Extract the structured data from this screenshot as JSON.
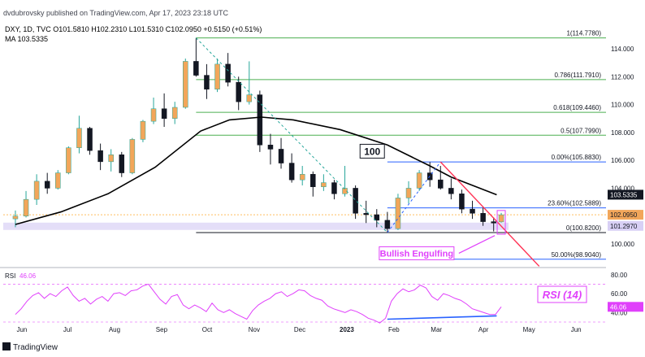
{
  "header": {
    "publisher_line": "dvdubrovsky published on TradingView.com, Apr 17, 2023 23:18 UTC",
    "symbol_line": "DXY, 1D, TVC  O101.5810  H102.2310  L101.5310  C102.0950  +0.5150 (+0.51%)",
    "ma_line": "MA  103.5335"
  },
  "footer": {
    "brand": "TradingView"
  },
  "colors": {
    "up": "#26a69a",
    "down": "#131722",
    "ma": "#000000",
    "fib_green": "#4caf50",
    "fib_blue": "#2962ff",
    "trendline": "#ff3355",
    "rsi": "#e040fb",
    "annot": "#e040fb",
    "rsi_trend": "#2962ff",
    "range_band": "#d8d0f5"
  },
  "chart_data": [
    {
      "type": "candlestick",
      "title": "DXY, 1D, TVC",
      "ohlc_latest": {
        "open": 101.581,
        "high": 102.231,
        "low": 101.531,
        "close": 102.095,
        "change": 0.515,
        "change_pct": "+0.51%"
      },
      "x_ticks": [
        "Jun",
        "Jul",
        "Aug",
        "Sep",
        "Oct",
        "Nov",
        "Dec",
        "2023",
        "Feb",
        "Mar",
        "Apr",
        "May",
        "Jun"
      ],
      "y_ticks": [
        "114.000",
        "112.000",
        "110.000",
        "108.000",
        "106.000",
        "104.000",
        "100.000"
      ],
      "ylim": [
        98.0,
        116.0
      ],
      "series": [
        {
          "name": "MA",
          "value_label": "103.5335",
          "points": [
            [
              "2022-06-01",
              101.4
            ],
            [
              "2022-07-01",
              102.3
            ],
            [
              "2022-08-01",
              103.6
            ],
            [
              "2022-09-01",
              105.5
            ],
            [
              "2022-10-01",
              108.1
            ],
            [
              "2022-10-20",
              108.9
            ],
            [
              "2022-11-10",
              109.1
            ],
            [
              "2022-12-01",
              108.9
            ],
            [
              "2023-01-01",
              108.2
            ],
            [
              "2023-02-01",
              107.1
            ],
            [
              "2023-03-01",
              105.6
            ],
            [
              "2023-03-15",
              104.8
            ],
            [
              "2023-04-14",
              103.53
            ]
          ]
        }
      ],
      "ohlc_sample": [
        [
          "2022-06-01",
          101.8,
          102.4,
          101.2,
          102.0
        ],
        [
          "2022-06-08",
          102.0,
          103.8,
          101.9,
          103.2
        ],
        [
          "2022-06-15",
          103.2,
          105.0,
          102.8,
          104.5
        ],
        [
          "2022-06-22",
          104.5,
          105.1,
          103.6,
          104.0
        ],
        [
          "2022-06-29",
          104.0,
          105.3,
          103.9,
          105.1
        ],
        [
          "2022-07-06",
          105.1,
          107.0,
          105.0,
          106.9
        ],
        [
          "2022-07-13",
          106.9,
          109.2,
          106.5,
          108.3
        ],
        [
          "2022-07-20",
          108.3,
          108.4,
          106.4,
          106.7
        ],
        [
          "2022-07-27",
          106.7,
          107.2,
          105.3,
          105.9
        ],
        [
          "2022-08-03",
          105.9,
          106.8,
          105.2,
          106.4
        ],
        [
          "2022-08-10",
          106.4,
          106.6,
          104.8,
          105.1
        ],
        [
          "2022-08-17",
          105.1,
          107.6,
          105.0,
          107.5
        ],
        [
          "2022-08-24",
          107.5,
          108.9,
          107.3,
          108.8
        ],
        [
          "2022-08-31",
          108.8,
          110.5,
          108.6,
          109.7
        ],
        [
          "2022-09-07",
          109.7,
          110.8,
          108.4,
          109.0
        ],
        [
          "2022-09-14",
          109.0,
          110.2,
          108.6,
          109.8
        ],
        [
          "2022-09-21",
          109.8,
          113.3,
          109.7,
          113.1
        ],
        [
          "2022-09-28",
          113.1,
          114.78,
          112.0,
          112.1
        ],
        [
          "2022-10-05",
          112.1,
          112.9,
          110.4,
          111.1
        ],
        [
          "2022-10-12",
          111.1,
          113.3,
          110.9,
          112.9
        ],
        [
          "2022-10-19",
          112.9,
          113.7,
          111.3,
          111.6
        ],
        [
          "2022-10-26",
          111.6,
          112.0,
          109.6,
          110.2
        ],
        [
          "2022-11-02",
          110.2,
          113.1,
          110.0,
          110.7
        ],
        [
          "2022-11-09",
          110.7,
          111.0,
          106.6,
          107.1
        ],
        [
          "2022-11-16",
          107.1,
          107.9,
          105.7,
          106.8
        ],
        [
          "2022-11-23",
          106.8,
          107.6,
          105.4,
          105.8
        ],
        [
          "2022-11-30",
          105.8,
          106.5,
          104.4,
          104.6
        ],
        [
          "2022-12-07",
          104.6,
          105.6,
          104.2,
          105.0
        ],
        [
          "2022-12-14",
          105.0,
          105.2,
          103.4,
          104.1
        ],
        [
          "2022-12-21",
          104.1,
          105.0,
          103.8,
          104.4
        ],
        [
          "2022-12-28",
          104.4,
          104.6,
          103.2,
          103.6
        ],
        [
          "2023-01-04",
          103.6,
          105.6,
          103.4,
          104.0
        ],
        [
          "2023-01-11",
          104.0,
          104.2,
          101.8,
          102.2
        ],
        [
          "2023-01-18",
          102.2,
          103.1,
          101.5,
          102.1
        ],
        [
          "2023-01-25",
          102.1,
          102.5,
          101.2,
          101.7
        ],
        [
          "2023-02-01",
          101.7,
          102.3,
          100.82,
          101.1
        ],
        [
          "2023-02-08",
          101.1,
          103.6,
          101.0,
          103.3
        ],
        [
          "2023-02-15",
          103.3,
          104.5,
          102.9,
          104.0
        ],
        [
          "2023-02-22",
          104.0,
          105.3,
          103.8,
          105.1
        ],
        [
          "2023-03-01",
          105.1,
          105.88,
          104.1,
          104.6
        ],
        [
          "2023-03-08",
          104.6,
          105.6,
          103.9,
          104.0
        ],
        [
          "2023-03-15",
          104.0,
          104.7,
          103.2,
          103.6
        ],
        [
          "2023-03-22",
          103.6,
          103.9,
          102.2,
          102.5
        ],
        [
          "2023-03-29",
          102.5,
          103.1,
          101.8,
          102.2
        ],
        [
          "2023-04-05",
          102.2,
          102.6,
          101.3,
          101.6
        ],
        [
          "2023-04-12",
          101.6,
          101.9,
          100.9,
          101.5
        ],
        [
          "2023-04-17",
          101.581,
          102.231,
          101.531,
          102.095
        ]
      ],
      "fib_levels": [
        {
          "label": "1(114.7780)",
          "value": 114.778
        },
        {
          "label": "0.786(111.7910)",
          "value": 111.791
        },
        {
          "label": "0.618(109.4460)",
          "value": 109.446
        },
        {
          "label": "0.5(107.7990)",
          "value": 107.799
        },
        {
          "label": "0.00%(105.8830)",
          "value": 105.883
        },
        {
          "label": "23.60%(102.5889)",
          "value": 102.5889
        },
        {
          "label": "0(100.8200)",
          "value": 100.82
        },
        {
          "label": "50.00%(98.9040)",
          "value": 98.904
        }
      ],
      "price_labels": [
        "103.5335",
        "102.0950",
        "101.2970"
      ],
      "annotations": [
        "100",
        "Bullish Engulfing"
      ]
    },
    {
      "type": "line",
      "title": "RSI",
      "series": [
        {
          "name": "RSI",
          "value_label": "46.06",
          "values": [
            38,
            44,
            52,
            58,
            61,
            55,
            60,
            57,
            63,
            67,
            58,
            52,
            55,
            49,
            54,
            57,
            52,
            60,
            61,
            58,
            63,
            64,
            68,
            70,
            62,
            54,
            49,
            57,
            59,
            48,
            44,
            48,
            45,
            41,
            50,
            43,
            40,
            43,
            39,
            36,
            33,
            42,
            48,
            52,
            55,
            60,
            62,
            57,
            60,
            64,
            63,
            58,
            55,
            53,
            47,
            44,
            42,
            40,
            43,
            41,
            38,
            34,
            32,
            29,
            34,
            52,
            60,
            65,
            62,
            64,
            69,
            66,
            57,
            53,
            60,
            58,
            55,
            53,
            49,
            44,
            42,
            40,
            38,
            38,
            46.06
          ]
        },
        {
          "name": "RSI trendline",
          "points": [
            [
              "2023-02-01",
              33
            ],
            [
              "2023-04-14",
              36.5
            ]
          ]
        }
      ],
      "y_ticks": [
        "80.00",
        "60.00",
        "40.00"
      ],
      "ylim": [
        30,
        85
      ],
      "annotations": [
        "RSI (14)"
      ]
    }
  ]
}
